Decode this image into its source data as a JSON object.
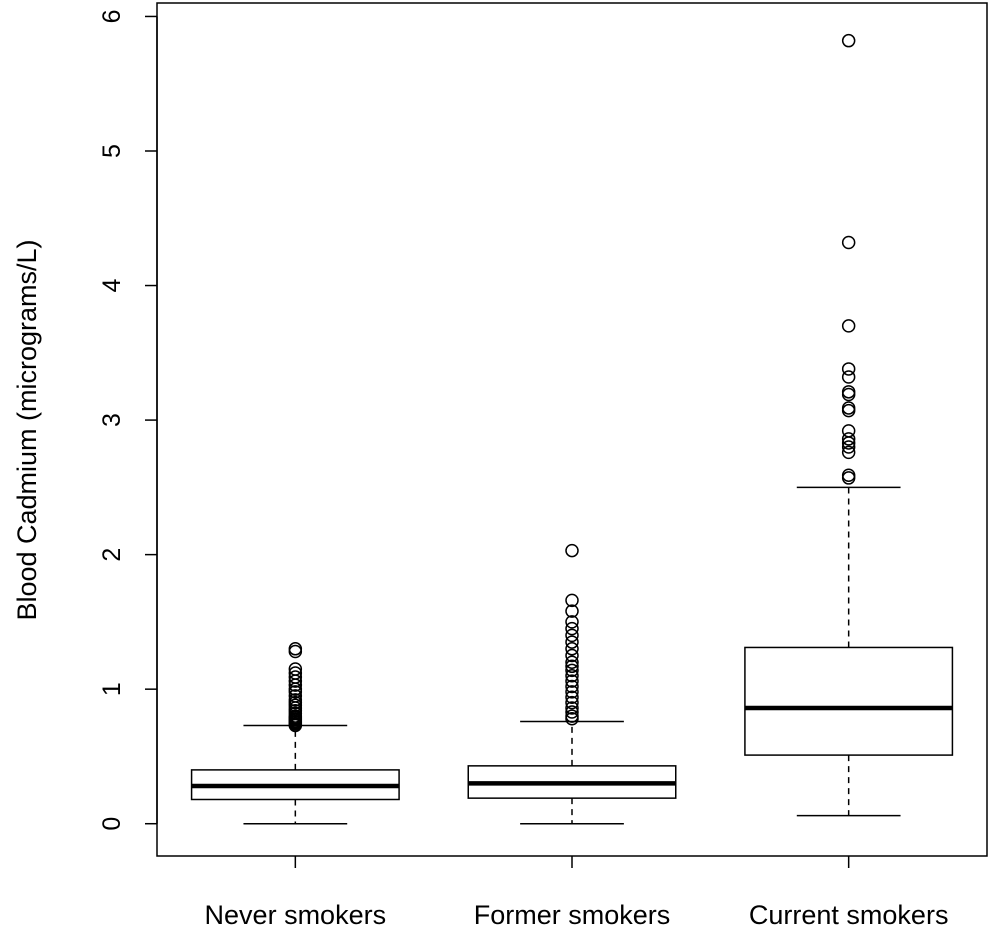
{
  "chart_data": {
    "type": "boxplot",
    "title": "",
    "xlabel": "",
    "ylabel": "Blood Cadmium (micrograms/L)",
    "ylim": [
      -0.24,
      6.1
    ],
    "yticks": [
      0,
      1,
      2,
      3,
      4,
      5,
      6
    ],
    "y_tick_labels": [
      "0",
      "1",
      "2",
      "3",
      "4",
      "5",
      "6"
    ],
    "categories": [
      "Never smokers",
      "Former smokers",
      "Current smokers"
    ],
    "grid": false,
    "legend": "none",
    "colors": {
      "stroke": "#000000",
      "box_fill": "#ffffff",
      "background": "#ffffff"
    },
    "boxes": [
      {
        "category": "Never smokers",
        "whisker_low": 0.0,
        "q1": 0.18,
        "median": 0.28,
        "q3": 0.4,
        "whisker_high": 0.73,
        "outliers": [
          0.73,
          0.74,
          0.75,
          0.76,
          0.77,
          0.78,
          0.79,
          0.8,
          0.82,
          0.84,
          0.86,
          0.88,
          0.9,
          0.92,
          0.95,
          0.98,
          1.0,
          1.03,
          1.06,
          1.09,
          1.12,
          1.15,
          1.28,
          1.3
        ]
      },
      {
        "category": "Former smokers",
        "whisker_low": 0.0,
        "q1": 0.19,
        "median": 0.3,
        "q3": 0.43,
        "whisker_high": 0.76,
        "outliers": [
          0.78,
          0.8,
          0.83,
          0.86,
          0.9,
          0.94,
          0.98,
          1.02,
          1.06,
          1.1,
          1.14,
          1.17,
          1.2,
          1.25,
          1.3,
          1.35,
          1.4,
          1.45,
          1.5,
          1.58,
          1.66,
          2.03
        ]
      },
      {
        "category": "Current smokers",
        "whisker_low": 0.06,
        "q1": 0.51,
        "median": 0.86,
        "q3": 1.31,
        "whisker_high": 2.5,
        "outliers": [
          2.57,
          2.59,
          2.76,
          2.8,
          2.83,
          2.86,
          2.92,
          3.07,
          3.09,
          3.19,
          3.21,
          3.32,
          3.38,
          3.7,
          4.32,
          5.82
        ]
      }
    ]
  }
}
